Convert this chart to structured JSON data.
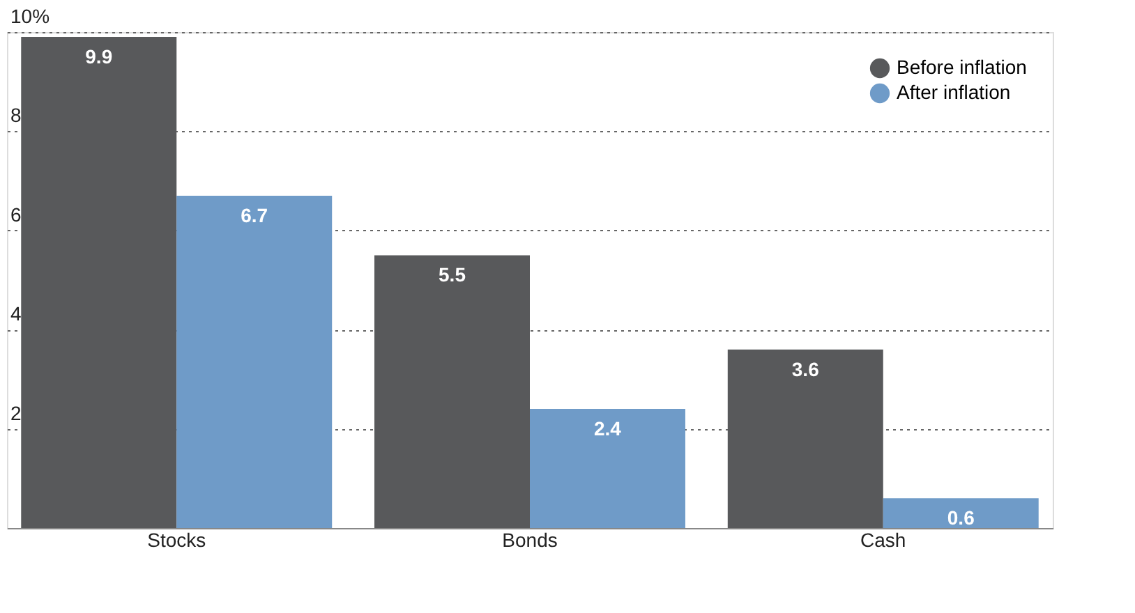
{
  "chart_data": {
    "type": "bar",
    "categories": [
      "Stocks",
      "Bonds",
      "Cash"
    ],
    "series": [
      {
        "name": "Before inflation",
        "color": "#58595b",
        "values": [
          9.9,
          5.5,
          3.6
        ]
      },
      {
        "name": "After inflation",
        "color": "#6f9bc8",
        "values": [
          6.7,
          2.4,
          0.6
        ]
      }
    ],
    "ylim": [
      0,
      10
    ],
    "yticks": [
      {
        "value": 0,
        "label": null
      },
      2,
      4,
      6,
      8,
      {
        "value": 10,
        "label": "10%"
      }
    ],
    "grid": "y",
    "legend": "top right",
    "data_labels": true
  }
}
